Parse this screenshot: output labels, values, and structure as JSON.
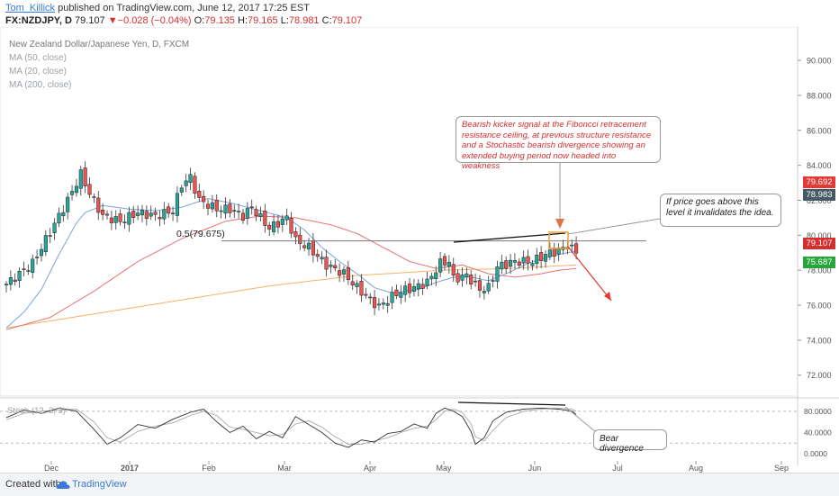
{
  "header": {
    "author": "Tom_Killick",
    "published_text": "published on TradingView.com, June 12, 2017 17:25 EST",
    "symbol": "FX:NZDJPY, D",
    "last": "79.107",
    "change": "−0.028 (−0.04%)",
    "open_label": "O:",
    "open": "79.135",
    "high_label": "H:",
    "high": "79.165",
    "low_label": "L:",
    "low": "78.981",
    "close_label": "C:",
    "close": "79.107"
  },
  "legend": {
    "title": "New Zealand Dollar/Japanese Yen, D, FXCM",
    "ma50": "MA (50, close)",
    "ma20": "MA (20, close)",
    "ma200": "MA (200, close)"
  },
  "annotations": {
    "top_callout": "Bearish kicker signal at the Fiboncci retracement resistance ceiling, at previous structure resistance and a Stochastic bearish divergence showing an extended buying period now headed into weakness",
    "right_callout": "If price goes above this level it invalidates the idea.",
    "divergence_callout": "Bear divergence",
    "fib_label": "0.5(79.675)"
  },
  "stoch_label": "Stoch (12, 3, 3)",
  "price_tags": {
    "tag_red": "79.692",
    "tag_dark": "78.983",
    "tag_last": "79.107",
    "tag_green": "75.687"
  },
  "footer": {
    "created": "Created with",
    "brand": "TradingView"
  },
  "colors": {
    "up": "#26a69a",
    "down": "#ef5350",
    "ma20": "#7fa4d8",
    "ma50": "#e57373",
    "ma200": "#f6b26b",
    "arrow": "#e53935",
    "accent": "#3a7bd5"
  },
  "chart_data": {
    "type": "candlestick",
    "title": "New Zealand Dollar/Japanese Yen, D, FXCM",
    "ylim": [
      70.8,
      91.5
    ],
    "y_ticks": [
      72.0,
      74.0,
      76.0,
      78.0,
      80.0,
      82.0,
      84.0,
      86.0,
      88.0,
      90.0
    ],
    "y_tick_labels": [
      "72.000",
      "74.000",
      "76.000",
      "78.000",
      "80.000",
      "82.000",
      "84.000",
      "86.000",
      "88.000",
      "90.000"
    ],
    "x_ticks": [
      "Dec",
      "2017",
      "Feb",
      "Mar",
      "Apr",
      "May",
      "Jun",
      "Jul",
      "Aug",
      "Sep"
    ],
    "bars": 148,
    "close_path": [
      [
        0,
        77.2
      ],
      [
        6,
        78.4
      ],
      [
        10,
        80.2
      ],
      [
        14,
        82.0
      ],
      [
        17,
        83.5
      ],
      [
        19,
        82.4
      ],
      [
        22,
        81.1
      ],
      [
        26,
        80.8
      ],
      [
        30,
        81.3
      ],
      [
        34,
        81.1
      ],
      [
        38,
        81.4
      ],
      [
        40,
        82.9
      ],
      [
        42,
        83.3
      ],
      [
        44,
        82.0
      ],
      [
        48,
        81.5
      ],
      [
        51,
        81.5
      ],
      [
        54,
        81.1
      ],
      [
        56,
        81.6
      ],
      [
        60,
        80.4
      ],
      [
        64,
        81.0
      ],
      [
        66,
        79.7
      ],
      [
        69,
        79.3
      ],
      [
        73,
        78.3
      ],
      [
        77,
        77.8
      ],
      [
        80,
        77.0
      ],
      [
        83,
        76.3
      ],
      [
        85,
        75.9
      ],
      [
        88,
        76.5
      ],
      [
        90,
        76.8
      ],
      [
        93,
        77.0
      ],
      [
        96,
        77.3
      ],
      [
        99,
        78.4
      ],
      [
        101,
        78.5
      ],
      [
        102,
        77.5
      ],
      [
        105,
        77.7
      ],
      [
        108,
        76.9
      ],
      [
        110,
        77.0
      ],
      [
        112,
        78.2
      ],
      [
        116,
        78.5
      ],
      [
        120,
        78.5
      ],
      [
        124,
        79.0
      ],
      [
        126,
        79.1
      ],
      [
        128,
        79.5
      ],
      [
        129,
        79.2
      ],
      [
        130,
        79.107
      ]
    ],
    "fib_level": {
      "label": "0.5",
      "value": 79.675
    },
    "ma20_path": [
      [
        0,
        74.7
      ],
      [
        4,
        75.6
      ],
      [
        8,
        76.9
      ],
      [
        12,
        78.9
      ],
      [
        16,
        80.7
      ],
      [
        18,
        81.3
      ],
      [
        22,
        81.7
      ],
      [
        28,
        81.5
      ],
      [
        34,
        81.4
      ],
      [
        40,
        81.6
      ],
      [
        46,
        82.1
      ],
      [
        52,
        81.8
      ],
      [
        58,
        81.4
      ],
      [
        64,
        81.0
      ],
      [
        68,
        80.3
      ],
      [
        72,
        79.3
      ],
      [
        76,
        78.5
      ],
      [
        80,
        77.8
      ],
      [
        84,
        77.0
      ],
      [
        88,
        76.7
      ],
      [
        94,
        76.9
      ],
      [
        98,
        77.3
      ],
      [
        102,
        77.6
      ],
      [
        106,
        77.6
      ],
      [
        110,
        77.4
      ],
      [
        114,
        77.8
      ],
      [
        120,
        78.5
      ],
      [
        126,
        78.9
      ],
      [
        130,
        79.1
      ]
    ],
    "ma50_path": [
      [
        0,
        74.6
      ],
      [
        10,
        75.3
      ],
      [
        20,
        76.8
      ],
      [
        30,
        78.5
      ],
      [
        40,
        79.8
      ],
      [
        50,
        80.8
      ],
      [
        58,
        81.1
      ],
      [
        66,
        81.0
      ],
      [
        74,
        80.6
      ],
      [
        80,
        80.1
      ],
      [
        86,
        79.3
      ],
      [
        92,
        78.5
      ],
      [
        98,
        78.1
      ],
      [
        104,
        78.3
      ],
      [
        110,
        77.8
      ],
      [
        116,
        77.6
      ],
      [
        122,
        77.8
      ],
      [
        126,
        78.0
      ],
      [
        130,
        78.1
      ]
    ],
    "ma200_path": [
      [
        0,
        74.7
      ],
      [
        20,
        75.5
      ],
      [
        40,
        76.3
      ],
      [
        60,
        77.1
      ],
      [
        80,
        77.7
      ],
      [
        100,
        78.0
      ],
      [
        115,
        78.1
      ],
      [
        130,
        78.3
      ]
    ],
    "stoch": {
      "ylim": [
        -10,
        100
      ],
      "y_ticks": [
        0,
        40,
        80
      ],
      "y_tick_labels": [
        "0.0000",
        "40.0000",
        "80.0000"
      ],
      "k_path": [
        [
          0,
          68
        ],
        [
          4,
          82
        ],
        [
          8,
          76
        ],
        [
          12,
          86
        ],
        [
          16,
          80
        ],
        [
          20,
          46
        ],
        [
          23,
          18
        ],
        [
          26,
          30
        ],
        [
          30,
          55
        ],
        [
          34,
          48
        ],
        [
          38,
          65
        ],
        [
          42,
          78
        ],
        [
          45,
          84
        ],
        [
          48,
          60
        ],
        [
          51,
          40
        ],
        [
          54,
          52
        ],
        [
          57,
          28
        ],
        [
          60,
          42
        ],
        [
          63,
          30
        ],
        [
          66,
          70
        ],
        [
          69,
          55
        ],
        [
          72,
          40
        ],
        [
          75,
          20
        ],
        [
          78,
          12
        ],
        [
          81,
          26
        ],
        [
          84,
          22
        ],
        [
          87,
          38
        ],
        [
          90,
          42
        ],
        [
          93,
          56
        ],
        [
          96,
          48
        ],
        [
          98,
          76
        ],
        [
          100,
          86
        ],
        [
          102,
          80
        ],
        [
          104,
          70
        ],
        [
          106,
          42
        ],
        [
          107,
          18
        ],
        [
          109,
          30
        ],
        [
          111,
          62
        ],
        [
          114,
          78
        ],
        [
          118,
          84
        ],
        [
          122,
          86
        ],
        [
          126,
          84
        ],
        [
          129,
          80
        ],
        [
          130,
          74
        ]
      ],
      "d_path": [
        [
          0,
          64
        ],
        [
          4,
          76
        ],
        [
          8,
          80
        ],
        [
          12,
          82
        ],
        [
          16,
          84
        ],
        [
          20,
          60
        ],
        [
          23,
          30
        ],
        [
          26,
          22
        ],
        [
          30,
          42
        ],
        [
          34,
          52
        ],
        [
          38,
          58
        ],
        [
          42,
          72
        ],
        [
          45,
          80
        ],
        [
          48,
          72
        ],
        [
          51,
          50
        ],
        [
          54,
          46
        ],
        [
          57,
          40
        ],
        [
          60,
          34
        ],
        [
          63,
          36
        ],
        [
          66,
          56
        ],
        [
          69,
          62
        ],
        [
          72,
          50
        ],
        [
          75,
          32
        ],
        [
          78,
          18
        ],
        [
          81,
          18
        ],
        [
          84,
          24
        ],
        [
          87,
          30
        ],
        [
          90,
          40
        ],
        [
          93,
          48
        ],
        [
          96,
          52
        ],
        [
          98,
          64
        ],
        [
          100,
          80
        ],
        [
          102,
          84
        ],
        [
          104,
          78
        ],
        [
          106,
          56
        ],
        [
          107,
          32
        ],
        [
          109,
          24
        ],
        [
          111,
          44
        ],
        [
          114,
          68
        ],
        [
          118,
          80
        ],
        [
          122,
          84
        ],
        [
          126,
          86
        ],
        [
          129,
          84
        ],
        [
          130,
          80
        ]
      ]
    }
  }
}
